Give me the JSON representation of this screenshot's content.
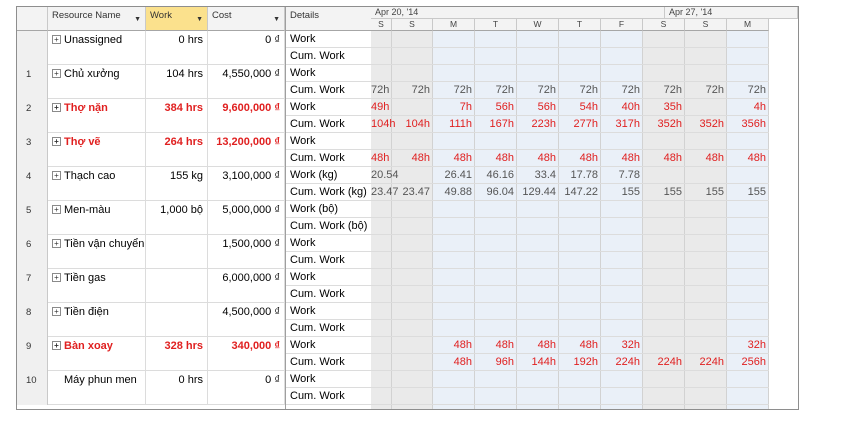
{
  "headers": {
    "resource_name": "Resource Name",
    "work": "Work",
    "cost": "Cost",
    "details": "Details",
    "week1": "Apr 20, '14",
    "week2": "Apr 27, '14",
    "days": [
      "S",
      "S",
      "M",
      "T",
      "W",
      "T",
      "F",
      "S",
      "S",
      "M"
    ]
  },
  "resources": [
    {
      "num": "",
      "name": "Unassigned",
      "work": "0 hrs",
      "cost": "0 ₫",
      "expand": true,
      "over": false,
      "details": [
        "Work",
        "Cum. Work"
      ],
      "values": [
        [
          "",
          "",
          "",
          "",
          "",
          "",
          "",
          "",
          "",
          ""
        ],
        [
          "",
          "",
          "",
          "",
          "",
          "",
          "",
          "",
          "",
          ""
        ]
      ]
    },
    {
      "num": "1",
      "name": "Chủ xưởng",
      "work": "104 hrs",
      "cost": "4,550,000 ₫",
      "expand": true,
      "over": false,
      "details": [
        "Work",
        "Cum. Work"
      ],
      "values": [
        [
          "",
          "",
          "",
          "",
          "",
          "",
          "",
          "",
          "",
          ""
        ],
        [
          "72h",
          "72h",
          "72h",
          "72h",
          "72h",
          "72h",
          "72h",
          "72h",
          "72h",
          "72h"
        ]
      ]
    },
    {
      "num": "2",
      "name": "Thợ nặn",
      "work": "384 hrs",
      "cost": "9,600,000 ₫",
      "expand": true,
      "over": true,
      "details": [
        "Work",
        "Cum. Work"
      ],
      "values": [
        [
          "49h",
          "",
          "7h",
          "56h",
          "56h",
          "54h",
          "40h",
          "35h",
          "",
          "4h"
        ],
        [
          "104h",
          "104h",
          "111h",
          "167h",
          "223h",
          "277h",
          "317h",
          "352h",
          "352h",
          "356h"
        ]
      ]
    },
    {
      "num": "3",
      "name": "Thợ vẽ",
      "work": "264 hrs",
      "cost": "13,200,000 ₫",
      "expand": true,
      "over": true,
      "details": [
        "Work",
        "Cum. Work"
      ],
      "values": [
        [
          "",
          "",
          "",
          "",
          "",
          "",
          "",
          "",
          "",
          ""
        ],
        [
          "48h",
          "48h",
          "48h",
          "48h",
          "48h",
          "48h",
          "48h",
          "48h",
          "48h",
          "48h"
        ]
      ]
    },
    {
      "num": "4",
      "name": "Thạch cao",
      "work": "155 kg",
      "cost": "3,100,000 ₫",
      "expand": true,
      "over": false,
      "details": [
        "Work (kg)",
        "Cum. Work (kg)"
      ],
      "values": [
        [
          "20.54",
          "",
          "26.41",
          "46.16",
          "33.4",
          "17.78",
          "7.78",
          "",
          "",
          ""
        ],
        [
          "23.47",
          "23.47",
          "49.88",
          "96.04",
          "129.44",
          "147.22",
          "155",
          "155",
          "155",
          "155"
        ]
      ]
    },
    {
      "num": "5",
      "name": "Men-màu",
      "work": "1,000 bộ",
      "cost": "5,000,000 ₫",
      "expand": true,
      "over": false,
      "details": [
        "Work (bộ)",
        "Cum. Work (bộ)"
      ],
      "values": [
        [
          "",
          "",
          "",
          "",
          "",
          "",
          "",
          "",
          "",
          ""
        ],
        [
          "",
          "",
          "",
          "",
          "",
          "",
          "",
          "",
          "",
          ""
        ]
      ]
    },
    {
      "num": "6",
      "name": "Tiền vận chuyển",
      "work": "",
      "cost": "1,500,000 ₫",
      "expand": true,
      "over": false,
      "details": [
        "Work",
        "Cum. Work"
      ],
      "values": [
        [
          "",
          "",
          "",
          "",
          "",
          "",
          "",
          "",
          "",
          ""
        ],
        [
          "",
          "",
          "",
          "",
          "",
          "",
          "",
          "",
          "",
          ""
        ]
      ]
    },
    {
      "num": "7",
      "name": "Tiền gas",
      "work": "",
      "cost": "6,000,000 ₫",
      "expand": true,
      "over": false,
      "details": [
        "Work",
        "Cum. Work"
      ],
      "values": [
        [
          "",
          "",
          "",
          "",
          "",
          "",
          "",
          "",
          "",
          ""
        ],
        [
          "",
          "",
          "",
          "",
          "",
          "",
          "",
          "",
          "",
          ""
        ]
      ]
    },
    {
      "num": "8",
      "name": "Tiền điện",
      "work": "",
      "cost": "4,500,000 ₫",
      "expand": true,
      "over": false,
      "details": [
        "Work",
        "Cum. Work"
      ],
      "values": [
        [
          "",
          "",
          "",
          "",
          "",
          "",
          "",
          "",
          "",
          ""
        ],
        [
          "",
          "",
          "",
          "",
          "",
          "",
          "",
          "",
          "",
          ""
        ]
      ]
    },
    {
      "num": "9",
      "name": "Bàn xoay",
      "work": "328 hrs",
      "cost": "340,000 ₫",
      "expand": true,
      "over": true,
      "details": [
        "Work",
        "Cum. Work"
      ],
      "values": [
        [
          "",
          "",
          "48h",
          "48h",
          "48h",
          "48h",
          "32h",
          "",
          "",
          "32h"
        ],
        [
          "",
          "",
          "48h",
          "96h",
          "144h",
          "192h",
          "224h",
          "224h",
          "224h",
          "256h"
        ]
      ]
    },
    {
      "num": "10",
      "name": "Máy phun men",
      "work": "0 hrs",
      "cost": "0 ₫",
      "expand": false,
      "over": false,
      "details": [
        "Work",
        "Cum. Work"
      ],
      "values": [
        [
          "",
          "",
          "",
          "",
          "",
          "",
          "",
          "",
          "",
          ""
        ],
        [
          "",
          "",
          "",
          "",
          "",
          "",
          "",
          "",
          "",
          ""
        ]
      ]
    }
  ],
  "colors": {
    "overallocated": "#e02020",
    "work_header": "#fbe18d",
    "weekday": "#eaf0f8",
    "weekend": "#eaeaea"
  }
}
